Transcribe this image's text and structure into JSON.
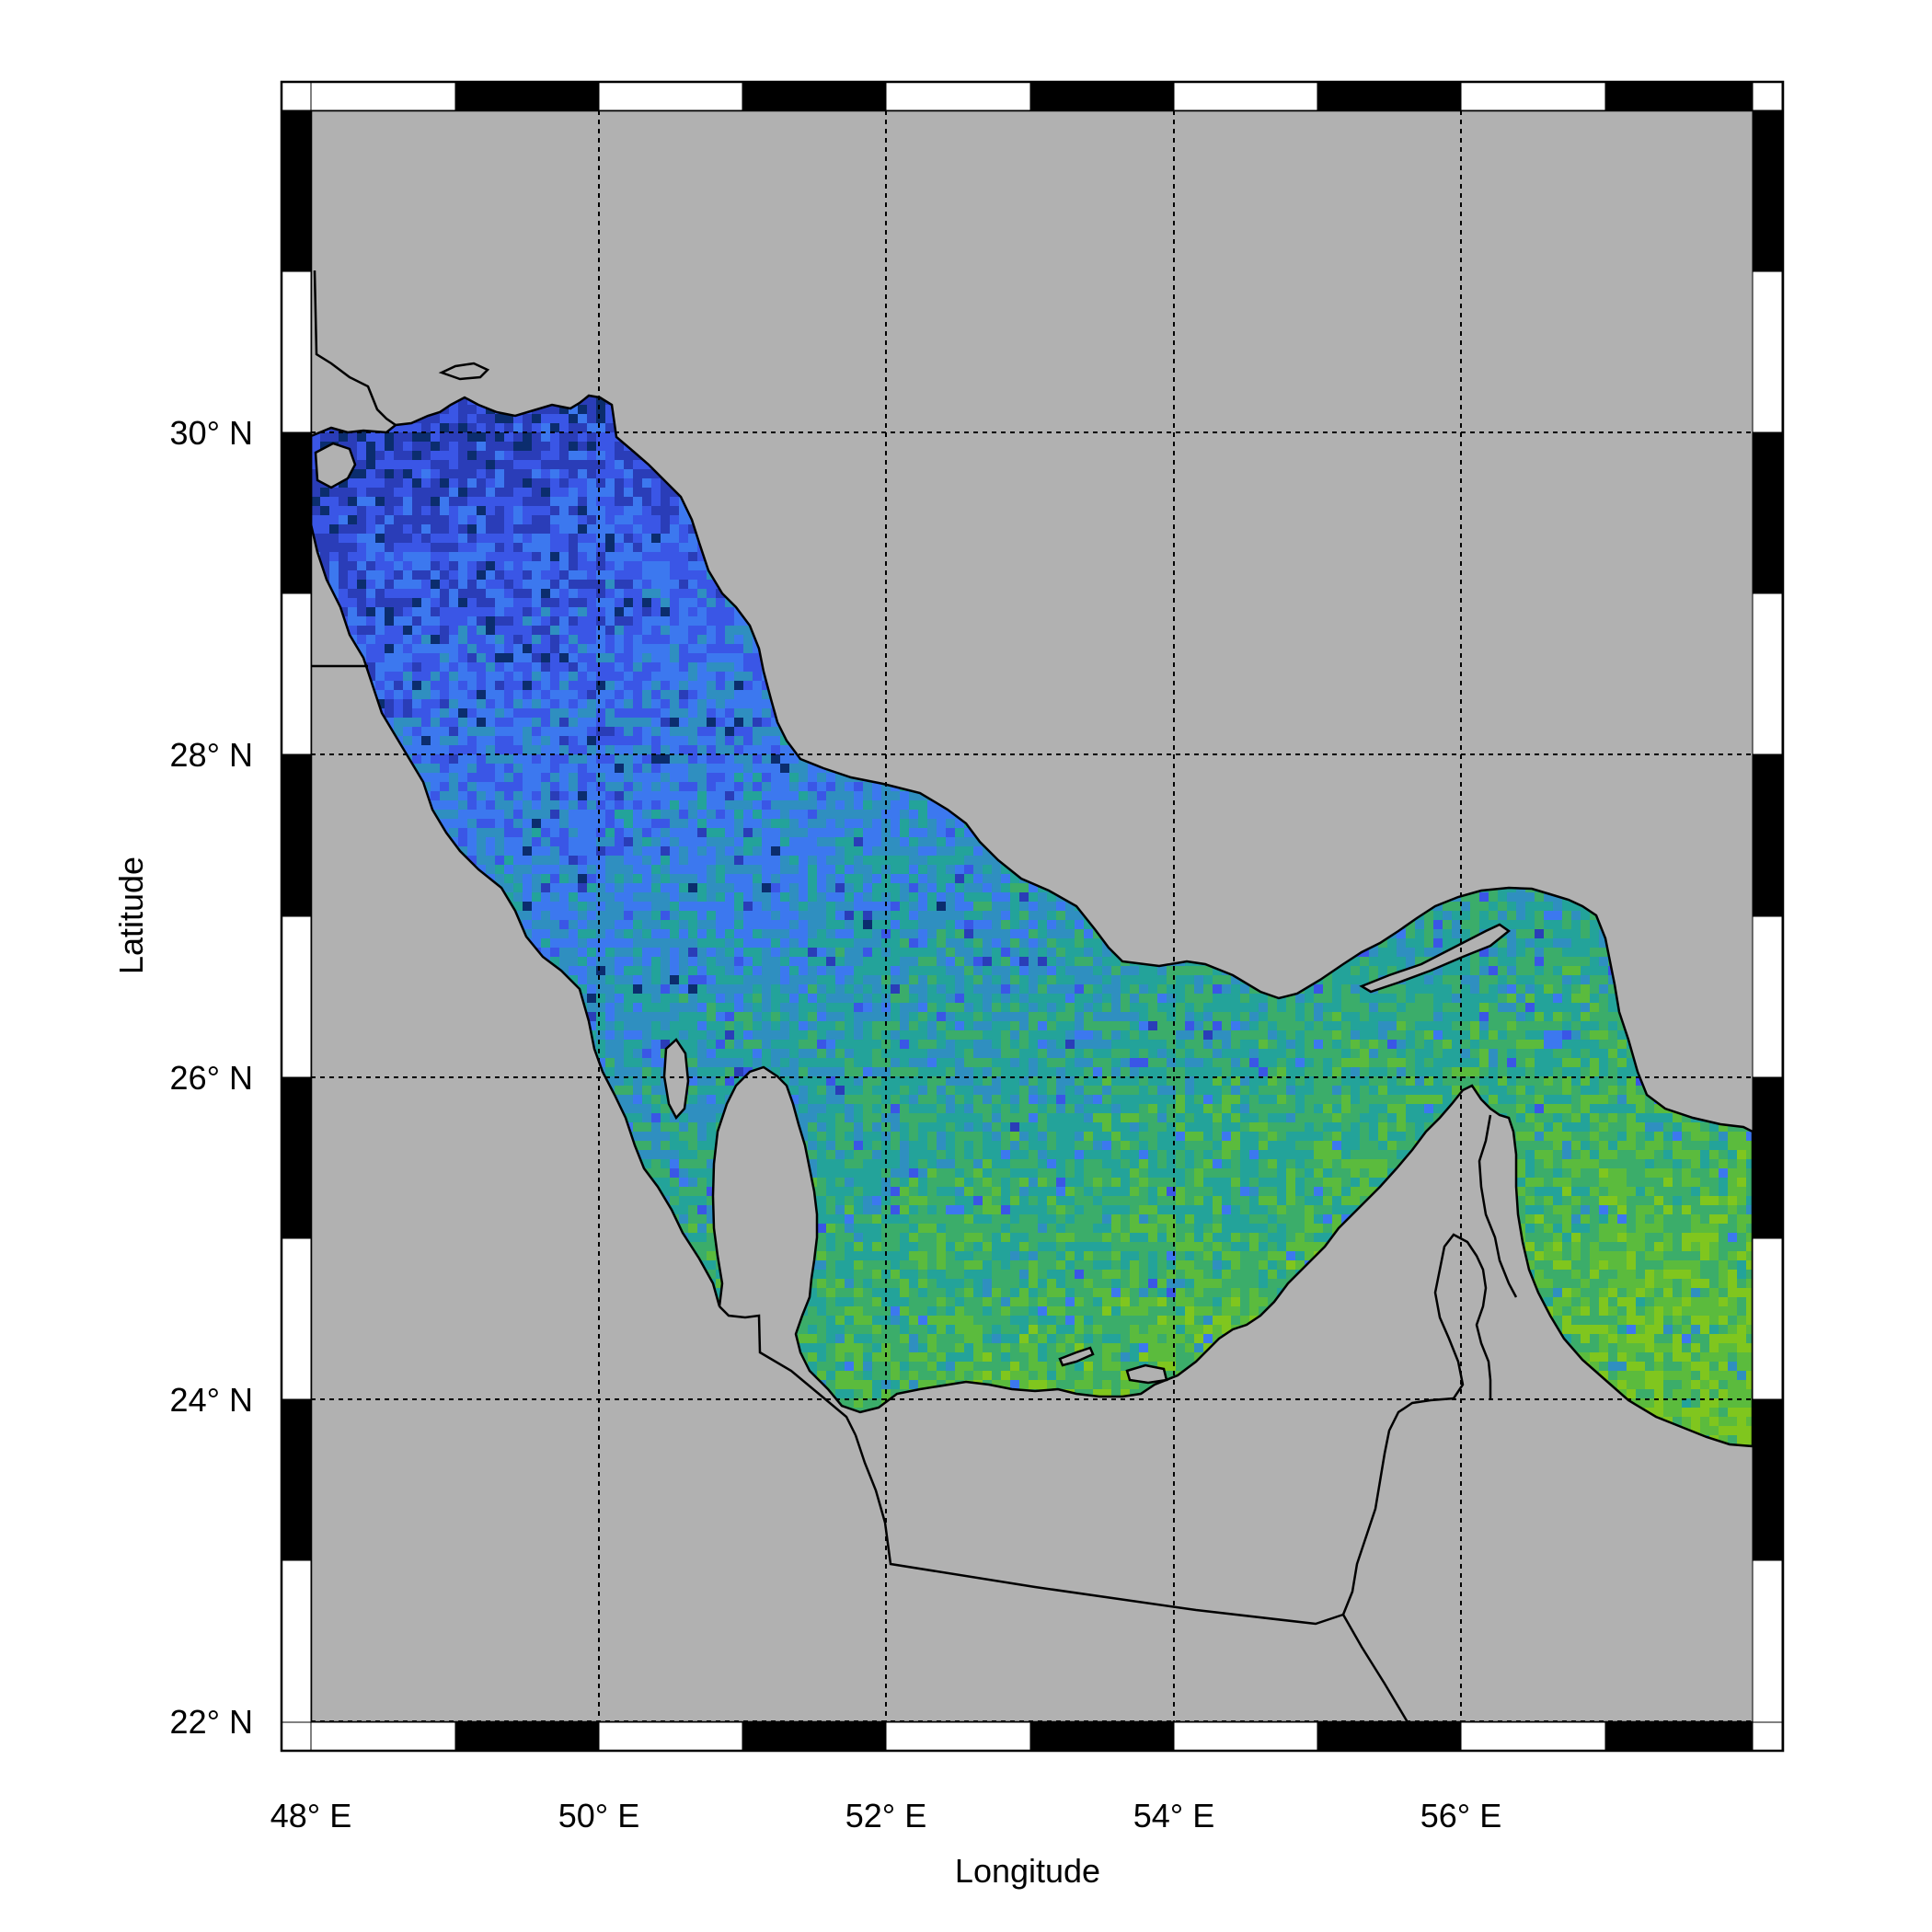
{
  "map": {
    "x_axis_label": "Longitude",
    "y_axis_label": "Latitude",
    "lon_ticks": [
      "48° E",
      "50° E",
      "52° E",
      "54° E",
      "56° E"
    ],
    "lat_ticks": [
      "30° N",
      "28° N",
      "26° N",
      "24° N",
      "22° N"
    ],
    "lon_range": [
      48,
      58
    ],
    "lat_range": [
      22,
      32
    ],
    "grid": "dotted",
    "land_color": "#b1b1b1",
    "coast_color": "#000000",
    "colormap": [
      "#0b2d6e",
      "#2a3db8",
      "#3a56e6",
      "#3c78ef",
      "#2f8fc0",
      "#23a39a",
      "#3bad6a",
      "#5bbb3d",
      "#80c61e"
    ],
    "field_trend": "values increase from north-west (blue) to south-east (green)"
  }
}
